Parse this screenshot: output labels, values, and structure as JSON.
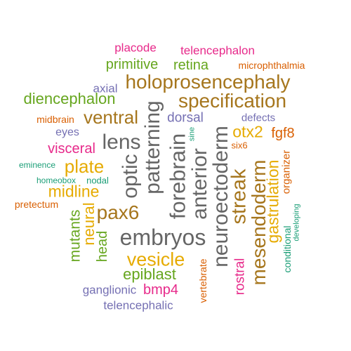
{
  "palette": {
    "magenta": "#E7298A",
    "green": "#66A61E",
    "brown": "#A6761D",
    "gold": "#E6AB02",
    "orange": "#D95F02",
    "teal": "#1B9E77",
    "purple": "#7570B3",
    "gray": "#666666"
  },
  "words": [
    {
      "text": "placode",
      "color": "magenta"
    },
    {
      "text": "telencephalon",
      "color": "magenta"
    },
    {
      "text": "primitive",
      "color": "green"
    },
    {
      "text": "retina",
      "color": "green"
    },
    {
      "text": "microphthalmia",
      "color": "orange"
    },
    {
      "text": "holoprosencephaly",
      "color": "brown"
    },
    {
      "text": "axial",
      "color": "purple"
    },
    {
      "text": "diencephalon",
      "color": "green"
    },
    {
      "text": "specification",
      "color": "brown"
    },
    {
      "text": "midbrain",
      "color": "orange"
    },
    {
      "text": "ventral",
      "color": "brown"
    },
    {
      "text": "dorsal",
      "color": "purple"
    },
    {
      "text": "defects",
      "color": "purple"
    },
    {
      "text": "eyes",
      "color": "purple"
    },
    {
      "text": "otx2",
      "color": "gold"
    },
    {
      "text": "fgf8",
      "color": "orange"
    },
    {
      "text": "lens",
      "color": "gray"
    },
    {
      "text": "visceral",
      "color": "magenta"
    },
    {
      "text": "six6",
      "color": "orange"
    },
    {
      "text": "eminence",
      "color": "teal"
    },
    {
      "text": "plate",
      "color": "gold"
    },
    {
      "text": "homeobox",
      "color": "teal"
    },
    {
      "text": "nodal",
      "color": "teal"
    },
    {
      "text": "midline",
      "color": "gold"
    },
    {
      "text": "pretectum",
      "color": "orange"
    },
    {
      "text": "pax6",
      "color": "brown"
    },
    {
      "text": "embryos",
      "color": "gray"
    },
    {
      "text": "vesicle",
      "color": "gold"
    },
    {
      "text": "epiblast",
      "color": "green"
    },
    {
      "text": "ganglionic",
      "color": "purple"
    },
    {
      "text": "bmp4",
      "color": "magenta"
    },
    {
      "text": "telencephalic",
      "color": "purple"
    },
    {
      "text": "optic",
      "color": "gray"
    },
    {
      "text": "patterning",
      "color": "gray"
    },
    {
      "text": "forebrain",
      "color": "gray"
    },
    {
      "text": "anterior",
      "color": "gray"
    },
    {
      "text": "sine",
      "color": "teal"
    },
    {
      "text": "neuroectoderm",
      "color": "gray"
    },
    {
      "text": "streak",
      "color": "brown"
    },
    {
      "text": "mesendoderm",
      "color": "brown"
    },
    {
      "text": "gastrulation",
      "color": "gold"
    },
    {
      "text": "organizer",
      "color": "orange"
    },
    {
      "text": "developing",
      "color": "teal"
    },
    {
      "text": "conditional",
      "color": "teal"
    },
    {
      "text": "mutants",
      "color": "green"
    },
    {
      "text": "neural",
      "color": "gold"
    },
    {
      "text": "head",
      "color": "green"
    },
    {
      "text": "vertebrate",
      "color": "orange"
    },
    {
      "text": "rostral",
      "color": "magenta"
    }
  ]
}
